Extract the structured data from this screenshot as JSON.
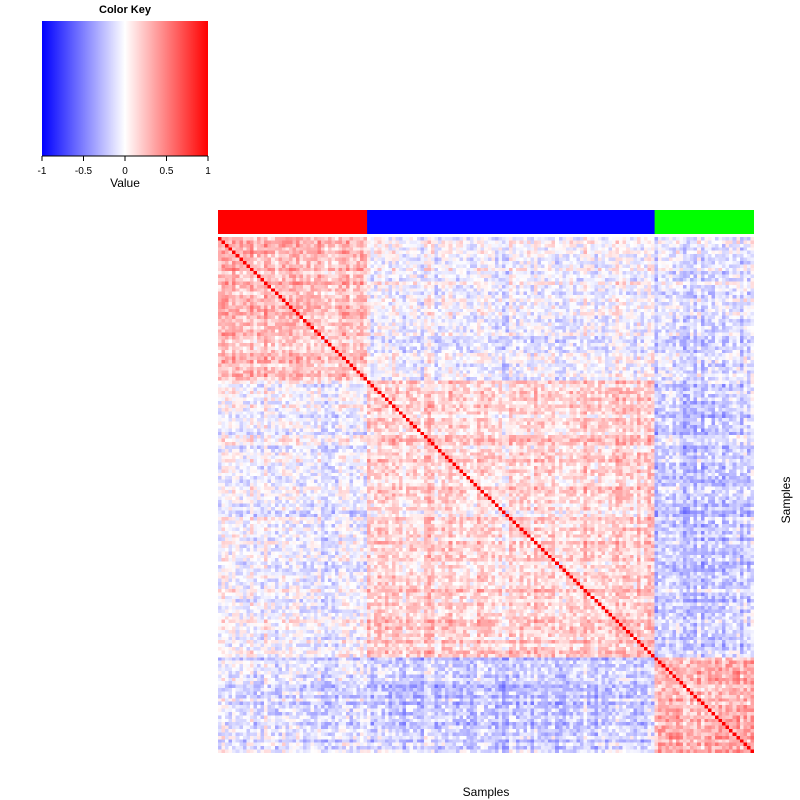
{
  "chart_data": {
    "type": "heatmap",
    "color_key": {
      "title": "Color Key",
      "label": "Value",
      "range": [
        -1,
        1
      ],
      "ticks": [
        "-1",
        "-0.5",
        "0",
        "0.5",
        "1"
      ],
      "tick_values": [
        -1,
        -0.5,
        0,
        0.5,
        1
      ],
      "colors": {
        "low": "#0000ff",
        "mid": "#ffffff",
        "high": "#ff0000"
      }
    },
    "xlabel": "Samples",
    "ylabel": "Samples",
    "groups": [
      {
        "color": "#ff0000",
        "count": 42
      },
      {
        "color": "#0000ff",
        "count": 81
      },
      {
        "color": "#00ff00",
        "count": 28
      }
    ],
    "diagonal_value": 1,
    "within_group_mean": [
      0.25,
      0.15,
      0.3
    ],
    "between_group_mean": [
      [
        0.25,
        -0.05,
        -0.12
      ],
      [
        -0.05,
        0.15,
        -0.2
      ],
      [
        -0.12,
        -0.2,
        0.3
      ]
    ]
  }
}
